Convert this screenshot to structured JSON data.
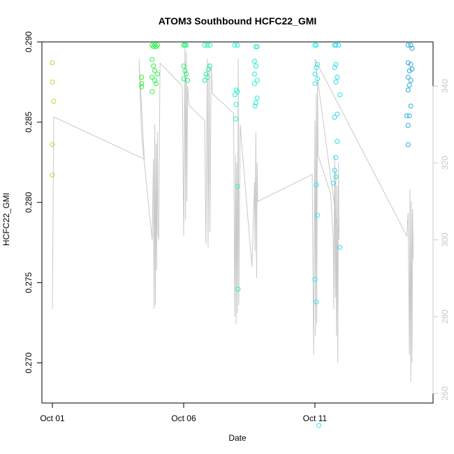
{
  "chart_data": {
    "type": "scatter",
    "title": "ATOM3 Southbound HCFC22_GMI",
    "xlabel": "Date",
    "ylabel": "HCFC22_GMI",
    "x_ticks": [
      "Oct 01",
      "Oct 06",
      "Oct 11"
    ],
    "x_tick_days": [
      1,
      6,
      11
    ],
    "xlim": [
      0.6,
      15.5
    ],
    "y_left": {
      "ticks": [
        "0.270",
        "0.275",
        "0.280",
        "0.285",
        "0.290"
      ],
      "tick_values": [
        0.27,
        0.275,
        0.28,
        0.285,
        0.29
      ],
      "lim": [
        0.2675,
        0.29
      ]
    },
    "y_right": {
      "ticks": [
        "260",
        "280",
        "300",
        "320",
        "340"
      ],
      "tick_values": [
        260,
        280,
        300,
        320,
        340
      ],
      "lim": [
        257.5,
        351.5
      ],
      "color": "#c8c8c8"
    },
    "legend": "none",
    "grid": false,
    "colors": {
      "line": "#c8c8c8",
      "axis": "#000000",
      "points_gradient": [
        "#a6e23a",
        "#27f22d",
        "#1ff0c8",
        "#27e6f0",
        "#2aa6e0"
      ]
    },
    "series": [
      {
        "values": [
          {
            "x": 1.0,
            "y": 0.2887
          },
          {
            "x": 1.0,
            "y": 0.2875
          },
          {
            "x": 1.05,
            "y": 0.2863
          },
          {
            "x": 1.0,
            "y": 0.2836
          },
          {
            "x": 1.0,
            "y": 0.2817
          },
          {
            "x": 4.4,
            "y": 0.2878
          },
          {
            "x": 4.4,
            "y": 0.2874
          },
          {
            "x": 4.4,
            "y": 0.2872
          },
          {
            "x": 4.8,
            "y": 0.2898
          },
          {
            "x": 4.85,
            "y": 0.2897
          },
          {
            "x": 4.9,
            "y": 0.2898
          },
          {
            "x": 4.95,
            "y": 0.2897
          },
          {
            "x": 5.0,
            "y": 0.2898
          },
          {
            "x": 4.8,
            "y": 0.2889
          },
          {
            "x": 4.85,
            "y": 0.2885
          },
          {
            "x": 4.9,
            "y": 0.2882
          },
          {
            "x": 4.8,
            "y": 0.2878
          },
          {
            "x": 4.9,
            "y": 0.2876
          },
          {
            "x": 4.95,
            "y": 0.2874
          },
          {
            "x": 4.8,
            "y": 0.2869
          },
          {
            "x": 5.0,
            "y": 0.288
          },
          {
            "x": 6.0,
            "y": 0.2898
          },
          {
            "x": 6.05,
            "y": 0.2898
          },
          {
            "x": 6.1,
            "y": 0.2898
          },
          {
            "x": 6.0,
            "y": 0.2885
          },
          {
            "x": 6.05,
            "y": 0.2882
          },
          {
            "x": 6.1,
            "y": 0.288
          },
          {
            "x": 6.0,
            "y": 0.2877
          },
          {
            "x": 6.15,
            "y": 0.2876
          },
          {
            "x": 6.8,
            "y": 0.2898
          },
          {
            "x": 6.9,
            "y": 0.2898
          },
          {
            "x": 7.0,
            "y": 0.2898
          },
          {
            "x": 7.0,
            "y": 0.2885
          },
          {
            "x": 6.95,
            "y": 0.2883
          },
          {
            "x": 6.85,
            "y": 0.288
          },
          {
            "x": 6.9,
            "y": 0.2878
          },
          {
            "x": 6.8,
            "y": 0.2876
          },
          {
            "x": 7.95,
            "y": 0.2898
          },
          {
            "x": 8.05,
            "y": 0.2898
          },
          {
            "x": 8.0,
            "y": 0.287
          },
          {
            "x": 8.05,
            "y": 0.2869
          },
          {
            "x": 7.95,
            "y": 0.2867
          },
          {
            "x": 8.0,
            "y": 0.2861
          },
          {
            "x": 7.98,
            "y": 0.2852
          },
          {
            "x": 8.05,
            "y": 0.281
          },
          {
            "x": 8.07,
            "y": 0.2746
          },
          {
            "x": 8.75,
            "y": 0.2897
          },
          {
            "x": 8.8,
            "y": 0.2897
          },
          {
            "x": 8.7,
            "y": 0.2888
          },
          {
            "x": 8.75,
            "y": 0.2885
          },
          {
            "x": 8.7,
            "y": 0.288
          },
          {
            "x": 8.8,
            "y": 0.2876
          },
          {
            "x": 8.7,
            "y": 0.2874
          },
          {
            "x": 8.8,
            "y": 0.2865
          },
          {
            "x": 8.75,
            "y": 0.2862
          },
          {
            "x": 8.72,
            "y": 0.286
          },
          {
            "x": 11.0,
            "y": 0.2898
          },
          {
            "x": 11.05,
            "y": 0.2898
          },
          {
            "x": 11.1,
            "y": 0.2886
          },
          {
            "x": 11.05,
            "y": 0.2884
          },
          {
            "x": 11.0,
            "y": 0.288
          },
          {
            "x": 11.1,
            "y": 0.2877
          },
          {
            "x": 11.0,
            "y": 0.2874
          },
          {
            "x": 11.05,
            "y": 0.2811
          },
          {
            "x": 11.1,
            "y": 0.2792
          },
          {
            "x": 11.0,
            "y": 0.2752
          },
          {
            "x": 11.05,
            "y": 0.2738
          },
          {
            "x": 11.15,
            "y": 0.2661
          },
          {
            "x": 11.75,
            "y": 0.2898
          },
          {
            "x": 11.8,
            "y": 0.2898
          },
          {
            "x": 11.9,
            "y": 0.2898
          },
          {
            "x": 11.8,
            "y": 0.2886
          },
          {
            "x": 11.75,
            "y": 0.2884
          },
          {
            "x": 11.85,
            "y": 0.2878
          },
          {
            "x": 11.8,
            "y": 0.2875
          },
          {
            "x": 11.95,
            "y": 0.2867
          },
          {
            "x": 11.85,
            "y": 0.2855
          },
          {
            "x": 11.75,
            "y": 0.2853
          },
          {
            "x": 11.85,
            "y": 0.2838
          },
          {
            "x": 11.8,
            "y": 0.2828
          },
          {
            "x": 11.75,
            "y": 0.282
          },
          {
            "x": 11.8,
            "y": 0.2816
          },
          {
            "x": 11.7,
            "y": 0.2812
          },
          {
            "x": 11.95,
            "y": 0.2772
          },
          {
            "x": 14.55,
            "y": 0.2898
          },
          {
            "x": 14.65,
            "y": 0.2898
          },
          {
            "x": 14.7,
            "y": 0.2896
          },
          {
            "x": 14.55,
            "y": 0.2887
          },
          {
            "x": 14.65,
            "y": 0.2886
          },
          {
            "x": 14.7,
            "y": 0.2883
          },
          {
            "x": 14.6,
            "y": 0.2882
          },
          {
            "x": 14.55,
            "y": 0.2878
          },
          {
            "x": 14.65,
            "y": 0.2876
          },
          {
            "x": 14.6,
            "y": 0.2873
          },
          {
            "x": 14.55,
            "y": 0.287
          },
          {
            "x": 14.65,
            "y": 0.286
          },
          {
            "x": 14.5,
            "y": 0.2854
          },
          {
            "x": 14.6,
            "y": 0.2854
          },
          {
            "x": 14.55,
            "y": 0.2848
          },
          {
            "x": 14.55,
            "y": 0.2836
          }
        ]
      },
      {
        "axis": "right",
        "values": [
          {
            "x": 1.0,
            "y": 282
          },
          {
            "x": 1.05,
            "y": 332
          },
          {
            "x": 4.5,
            "y": 321
          },
          {
            "x": 4.3,
            "y": 347
          },
          {
            "x": 4.4,
            "y": 327
          },
          {
            "x": 4.8,
            "y": 300
          },
          {
            "x": 4.85,
            "y": 321
          },
          {
            "x": 4.87,
            "y": 282
          },
          {
            "x": 4.9,
            "y": 330
          },
          {
            "x": 4.92,
            "y": 283
          },
          {
            "x": 4.95,
            "y": 325
          },
          {
            "x": 4.97,
            "y": 292
          },
          {
            "x": 5.0,
            "y": 328
          },
          {
            "x": 5.02,
            "y": 302
          },
          {
            "x": 5.05,
            "y": 300
          },
          {
            "x": 5.1,
            "y": 346
          },
          {
            "x": 5.95,
            "y": 340
          },
          {
            "x": 6.0,
            "y": 301
          },
          {
            "x": 6.05,
            "y": 350
          },
          {
            "x": 6.07,
            "y": 305
          },
          {
            "x": 6.1,
            "y": 349
          },
          {
            "x": 6.12,
            "y": 310
          },
          {
            "x": 6.15,
            "y": 340
          },
          {
            "x": 6.2,
            "y": 335
          },
          {
            "x": 6.8,
            "y": 331
          },
          {
            "x": 6.85,
            "y": 299
          },
          {
            "x": 6.9,
            "y": 347
          },
          {
            "x": 6.93,
            "y": 298
          },
          {
            "x": 6.97,
            "y": 346
          },
          {
            "x": 7.0,
            "y": 302
          },
          {
            "x": 7.05,
            "y": 345
          },
          {
            "x": 7.1,
            "y": 338
          },
          {
            "x": 7.9,
            "y": 333
          },
          {
            "x": 7.95,
            "y": 280
          },
          {
            "x": 7.98,
            "y": 322
          },
          {
            "x": 8.0,
            "y": 278
          },
          {
            "x": 8.02,
            "y": 320
          },
          {
            "x": 8.05,
            "y": 281
          },
          {
            "x": 8.08,
            "y": 347
          },
          {
            "x": 8.1,
            "y": 283
          },
          {
            "x": 8.15,
            "y": 330
          },
          {
            "x": 8.6,
            "y": 293
          },
          {
            "x": 8.7,
            "y": 315
          },
          {
            "x": 8.72,
            "y": 297
          },
          {
            "x": 8.75,
            "y": 328
          },
          {
            "x": 8.78,
            "y": 290
          },
          {
            "x": 8.8,
            "y": 320
          },
          {
            "x": 8.82,
            "y": 310
          },
          {
            "x": 10.3,
            "y": 315
          },
          {
            "x": 10.9,
            "y": 317
          },
          {
            "x": 10.95,
            "y": 270
          },
          {
            "x": 11.0,
            "y": 331
          },
          {
            "x": 11.02,
            "y": 275
          },
          {
            "x": 11.05,
            "y": 338
          },
          {
            "x": 11.07,
            "y": 278
          },
          {
            "x": 11.1,
            "y": 342
          },
          {
            "x": 11.12,
            "y": 322
          },
          {
            "x": 11.6,
            "y": 312
          },
          {
            "x": 11.7,
            "y": 300
          },
          {
            "x": 11.72,
            "y": 282
          },
          {
            "x": 11.75,
            "y": 322
          },
          {
            "x": 11.78,
            "y": 285
          },
          {
            "x": 11.8,
            "y": 318
          },
          {
            "x": 11.82,
            "y": 275
          },
          {
            "x": 11.85,
            "y": 314
          },
          {
            "x": 11.87,
            "y": 268
          },
          {
            "x": 11.9,
            "y": 320
          },
          {
            "x": 11.92,
            "y": 300
          },
          {
            "x": 11.0,
            "y": 347
          },
          {
            "x": 14.5,
            "y": 301
          },
          {
            "x": 14.55,
            "y": 307
          },
          {
            "x": 14.6,
            "y": 270
          },
          {
            "x": 14.62,
            "y": 313
          },
          {
            "x": 14.65,
            "y": 263
          },
          {
            "x": 14.67,
            "y": 310
          },
          {
            "x": 14.7,
            "y": 268
          },
          {
            "x": 14.72,
            "y": 308
          },
          {
            "x": 14.75,
            "y": 295
          }
        ]
      }
    ]
  }
}
